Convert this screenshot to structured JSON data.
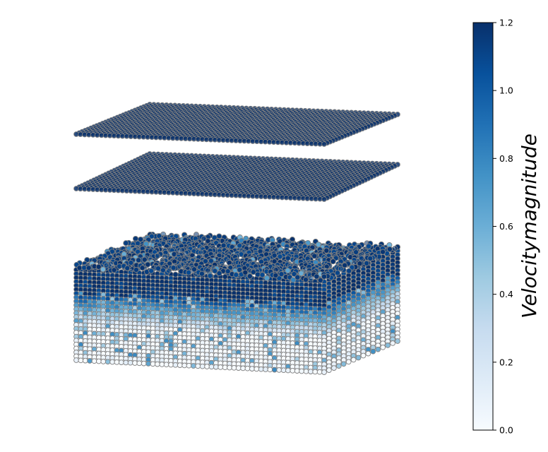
{
  "chart_data": {
    "type": "scatter",
    "projection": "3d",
    "colormap": "Blues",
    "colormap_stops": [
      "#f7fbff",
      "#deebf7",
      "#c6dbef",
      "#9ecae1",
      "#6baed6",
      "#4292c6",
      "#2171b5",
      "#08519c",
      "#08306b"
    ],
    "particle_edge_color": "#808080",
    "colorbar": {
      "label": "Velocitymagnitude",
      "vmin": 0.0,
      "vmax": 1.2,
      "ticks": [
        0.0,
        0.2,
        0.4,
        0.6,
        0.8,
        1.0,
        1.2
      ],
      "tick_labels": [
        "0.0",
        "0.2",
        "0.4",
        "0.6",
        "0.8",
        "1.0",
        "1.2"
      ]
    },
    "groups": [
      {
        "name": "",
        "kind": "plate",
        "velocity_magnitude": 1.2
      },
      {
        "name": "",
        "kind": "plate",
        "velocity_magnitude": 1.2
      },
      {
        "name": "",
        "kind": "granular bed",
        "velocity_magnitude_top": 1.2,
        "velocity_magnitude_bottom": 0.0
      }
    ]
  }
}
